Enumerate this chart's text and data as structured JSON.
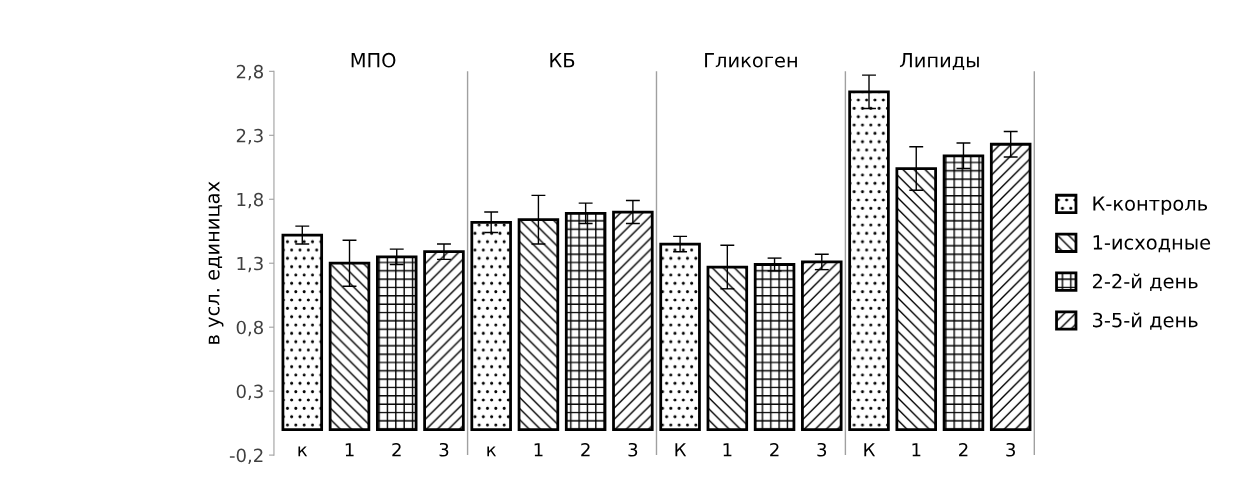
{
  "chart_data": {
    "type": "bar",
    "ylabel": "в усл. единицах",
    "categories": [
      "к",
      "1",
      "2",
      "3",
      "к",
      "1",
      "2",
      "3",
      "К",
      "1",
      "2",
      "3",
      "К",
      "1",
      "2",
      "3"
    ],
    "annotations": [
      "МПО",
      "КБ",
      "Гликоген",
      "Липиды"
    ],
    "series": [
      {
        "name": "К-контроль",
        "color": "#000000",
        "values": [
          1.52,
          null,
          null,
          null,
          1.62,
          null,
          null,
          null,
          1.45,
          null,
          null,
          null,
          2.64,
          null,
          null,
          null
        ],
        "errors": [
          0.07,
          null,
          null,
          null,
          0.08,
          null,
          null,
          null,
          0.06,
          null,
          null,
          null,
          0.13,
          null,
          null,
          null
        ]
      },
      {
        "name": "1-исходные",
        "color": "#000000",
        "values": [
          null,
          1.3,
          null,
          null,
          null,
          1.64,
          null,
          null,
          null,
          1.27,
          null,
          null,
          null,
          2.04,
          null,
          null
        ],
        "errors": [
          null,
          0.18,
          null,
          null,
          null,
          0.19,
          null,
          null,
          null,
          0.17,
          null,
          null,
          null,
          0.17,
          null,
          null
        ]
      },
      {
        "name": "2-2-й день",
        "color": "#000000",
        "values": [
          null,
          null,
          1.35,
          null,
          null,
          null,
          1.69,
          null,
          null,
          null,
          1.29,
          null,
          null,
          null,
          2.14,
          null
        ],
        "errors": [
          null,
          null,
          0.06,
          null,
          null,
          null,
          0.08,
          null,
          null,
          null,
          0.05,
          null,
          null,
          null,
          0.1,
          null
        ]
      },
      {
        "name": "3-5-й день",
        "color": "#000000",
        "values": [
          null,
          null,
          null,
          1.39,
          null,
          null,
          null,
          1.7,
          null,
          null,
          null,
          1.31,
          null,
          null,
          null,
          2.23
        ],
        "errors": [
          null,
          null,
          null,
          0.06,
          null,
          null,
          null,
          0.09,
          null,
          null,
          null,
          0.06,
          null,
          null,
          null,
          0.1
        ]
      }
    ],
    "ylim": [
      -0.2,
      2.8
    ],
    "yticks": [
      {
        "value": -0.2,
        "label": "-0,2"
      },
      {
        "value": 0.3,
        "label": "0,3"
      },
      {
        "value": 0.8,
        "label": "0,8"
      },
      {
        "value": 1.3,
        "label": "1,3"
      },
      {
        "value": 1.8,
        "label": "1,8"
      },
      {
        "value": 2.3,
        "label": "2,3"
      },
      {
        "value": 2.8,
        "label": "2,8"
      }
    ],
    "grid": false,
    "legend": "right"
  }
}
